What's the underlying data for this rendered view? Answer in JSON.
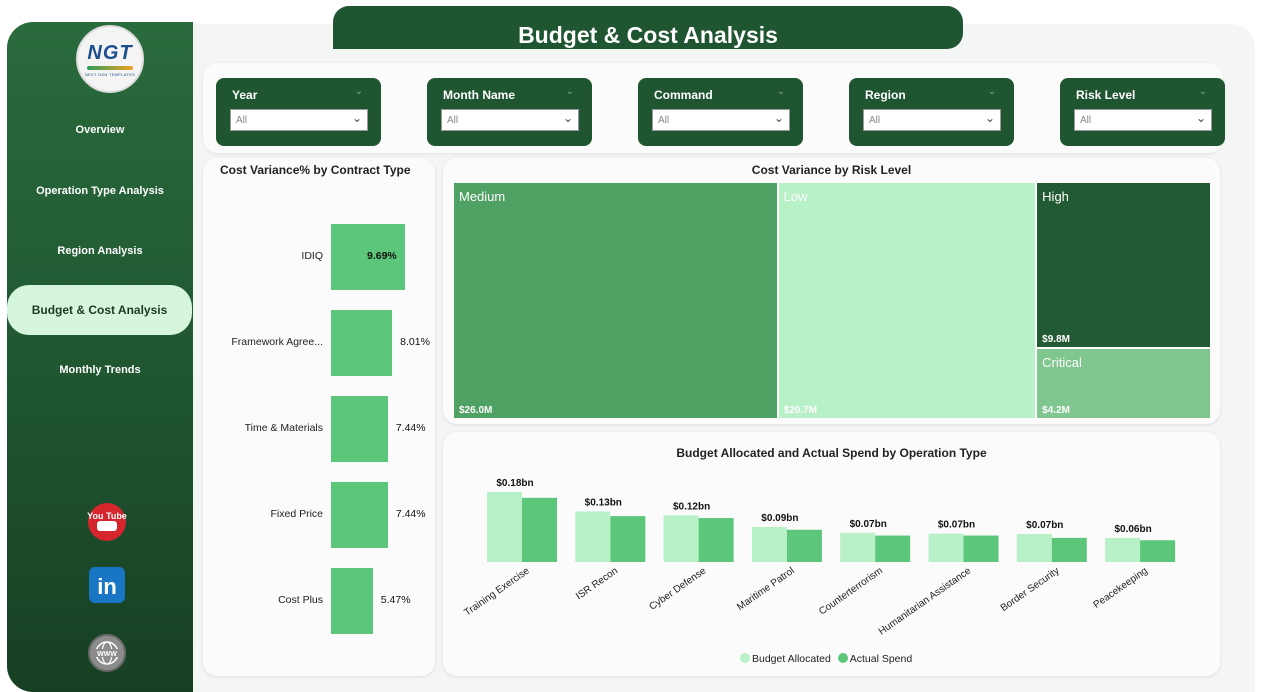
{
  "title": "Budget & Cost Analysis",
  "logo": {
    "text": "NGT",
    "subtext": "NEXT GEN TEMPLATES"
  },
  "nav": [
    {
      "label": "Overview"
    },
    {
      "label": "Operation Type Analysis"
    },
    {
      "label": "Region Analysis"
    },
    {
      "label": "Budget & Cost Analysis",
      "active": true
    },
    {
      "label": "Monthly Trends"
    }
  ],
  "social": [
    {
      "icon": "youtube-icon",
      "label": "You Tube"
    },
    {
      "icon": "linkedin-icon",
      "label": "in"
    },
    {
      "icon": "website-icon",
      "label": "WWW"
    }
  ],
  "filters": [
    {
      "label": "Year",
      "value": "All"
    },
    {
      "label": "Month Name",
      "value": "All"
    },
    {
      "label": "Command",
      "value": "All"
    },
    {
      "label": "Region",
      "value": "All"
    },
    {
      "label": "Risk Level",
      "value": "All"
    }
  ],
  "colors": {
    "dark_green": "#1f5530",
    "bar_green": "#5cc77a",
    "light_green": "#b8f0c8",
    "medium_green": "#4fa263",
    "high_green": "#225a33",
    "critical_green": "#7fc68f"
  },
  "chart_data": [
    {
      "type": "bar",
      "orientation": "horizontal",
      "title": "Cost Variance% by Contract Type",
      "categories": [
        "IDIQ",
        "Framework Agree...",
        "Time & Materials",
        "Fixed Price",
        "Cost Plus"
      ],
      "values": [
        9.69,
        8.01,
        7.44,
        7.44,
        5.47
      ],
      "value_labels": [
        "9.69%",
        "8.01%",
        "7.44%",
        "7.44%",
        "5.47%"
      ]
    },
    {
      "type": "treemap",
      "title": "Cost Variance by Risk Level",
      "items": [
        {
          "name": "Medium",
          "value": 26.0,
          "label": "$26.0M"
        },
        {
          "name": "Low",
          "value": 20.7,
          "label": "$20.7M"
        },
        {
          "name": "High",
          "value": 9.8,
          "label": "$9.8M"
        },
        {
          "name": "Critical",
          "value": 4.2,
          "label": "$4.2M"
        }
      ]
    },
    {
      "type": "bar",
      "title": "Budget Allocated and Actual Spend by Operation Type",
      "categories": [
        "Training Exercise",
        "ISR Recon",
        "Cyber Defense",
        "Maritime Patrol",
        "Counterterrorism",
        "Humanitarian Assistance",
        "Border Security",
        "Peacekeeping"
      ],
      "group_labels": [
        "$0.18bn",
        "$0.13bn",
        "$0.12bn",
        "$0.09bn",
        "$0.07bn",
        "$0.07bn",
        "$0.07bn",
        "$0.06bn"
      ],
      "series": [
        {
          "name": "Budget Allocated",
          "values": [
            0.18,
            0.13,
            0.12,
            0.09,
            0.075,
            0.073,
            0.072,
            0.062
          ]
        },
        {
          "name": "Actual Spend",
          "values": [
            0.165,
            0.118,
            0.113,
            0.083,
            0.068,
            0.068,
            0.062,
            0.056
          ]
        }
      ],
      "legend": "bottom"
    }
  ]
}
